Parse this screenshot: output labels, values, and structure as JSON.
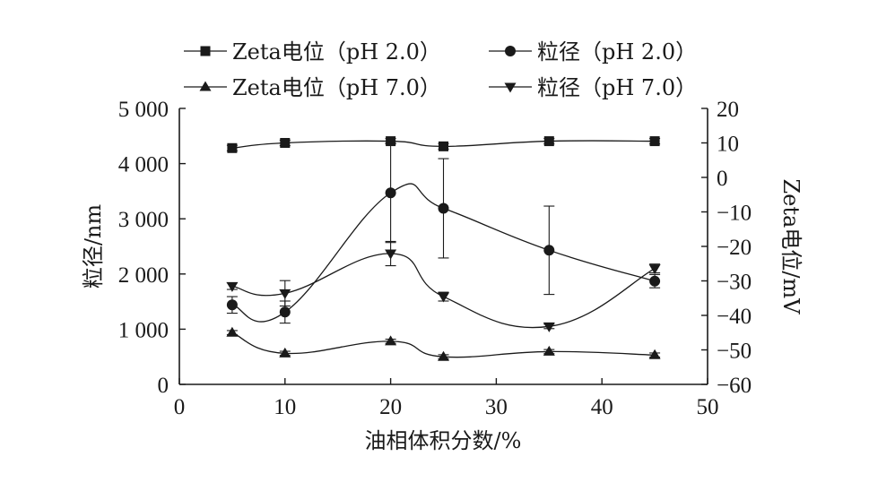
{
  "chart_data": {
    "type": "line",
    "xlabel": "油相体积分数/%",
    "ylabel_left": "粒径/nm",
    "ylabel_right": "Zeta电位/mV",
    "xlim": [
      0,
      50
    ],
    "ylim_left": [
      0,
      5000
    ],
    "ylim_right": [
      -60,
      20
    ],
    "x_ticks": [
      0,
      10,
      20,
      30,
      40,
      50
    ],
    "x_tick_labels": [
      "0",
      "10",
      "20",
      "30",
      "40",
      "50"
    ],
    "y_left_ticks": [
      0,
      1000,
      2000,
      3000,
      4000,
      5000
    ],
    "y_left_tick_labels": [
      "0",
      "1 000",
      "2 000",
      "3 000",
      "4 000",
      "5 000"
    ],
    "y_right_ticks": [
      -60,
      -50,
      -40,
      -30,
      -20,
      -10,
      0,
      10,
      20
    ],
    "y_right_tick_labels": [
      "−60",
      "−50",
      "−40",
      "−30",
      "−20",
      "−10",
      "0",
      "10",
      "20"
    ],
    "legend_position": "top",
    "grid": false,
    "series": [
      {
        "name": "Zeta电位（pH 2.0）",
        "marker": "square",
        "axis": "right",
        "x": [
          5,
          10,
          20,
          25,
          35,
          45
        ],
        "y": [
          8.5,
          10,
          10.5,
          9,
          10.5,
          10.5
        ],
        "err": [
          0.8,
          0.8,
          0.8,
          0.8,
          0.8,
          0.8
        ]
      },
      {
        "name": "粒径（pH 2.0）",
        "marker": "circle",
        "axis": "left",
        "x": [
          5,
          10,
          20,
          25,
          35,
          45
        ],
        "y": [
          1440,
          1310,
          3470,
          3190,
          2430,
          1870
        ],
        "err": [
          150,
          200,
          900,
          900,
          800,
          120
        ]
      },
      {
        "name": "Zeta电位（pH 7.0）",
        "marker": "triangle-up",
        "axis": "right",
        "x": [
          5,
          10,
          20,
          25,
          35,
          45
        ],
        "y": [
          -45,
          -51,
          -47.5,
          -52,
          -50.5,
          -51.5
        ],
        "err": [
          0.6,
          0.6,
          0.6,
          0.6,
          0.6,
          0.6
        ]
      },
      {
        "name": "粒径（pH 7.0）",
        "marker": "triangle-down",
        "axis": "left",
        "x": [
          5,
          10,
          20,
          25,
          35,
          45
        ],
        "y": [
          1780,
          1650,
          2370,
          1590,
          1050,
          2100
        ],
        "err": [
          60,
          230,
          220,
          80,
          40,
          80
        ]
      }
    ]
  }
}
